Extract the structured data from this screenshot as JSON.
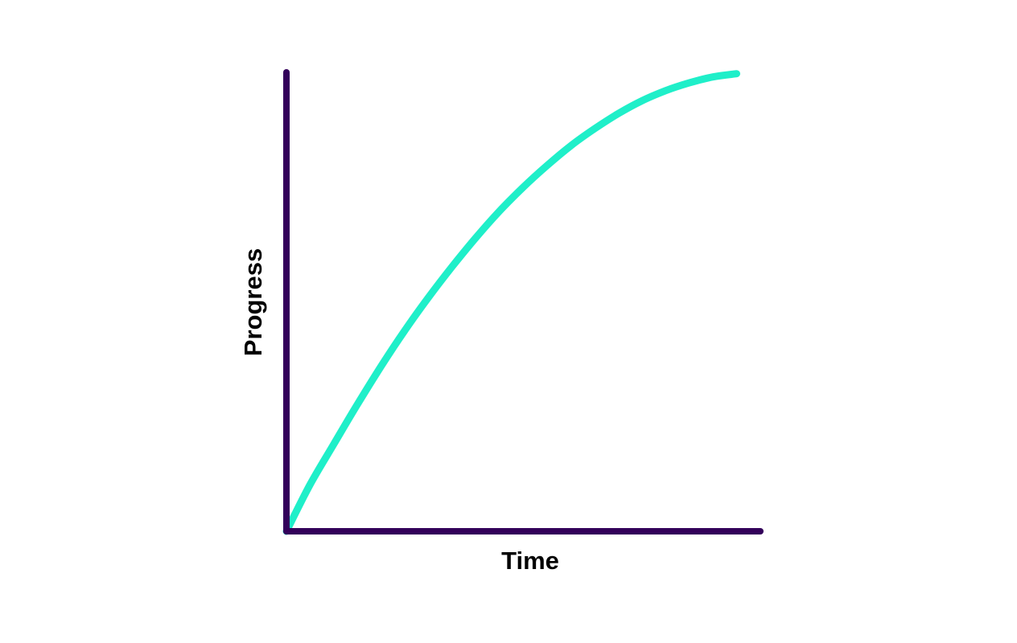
{
  "chart_data": {
    "type": "line",
    "title": "",
    "xlabel": "Time",
    "ylabel": "Progress",
    "xlim": [
      0,
      1
    ],
    "ylim": [
      0,
      1
    ],
    "grid": false,
    "legend": "none",
    "series": [
      {
        "x": [
          0,
          0.05,
          0.1,
          0.15,
          0.2,
          0.25,
          0.3,
          0.35,
          0.4,
          0.45,
          0.5,
          0.55,
          0.6,
          0.65,
          0.7,
          0.75,
          0.8,
          0.85,
          0.9,
          0.95
        ],
        "values": [
          0,
          0.102,
          0.19,
          0.277,
          0.36,
          0.438,
          0.51,
          0.577,
          0.64,
          0.698,
          0.75,
          0.797,
          0.84,
          0.877,
          0.91,
          0.938,
          0.96,
          0.977,
          0.99,
          0.997
        ]
      }
    ]
  },
  "colors": {
    "axis": "#33005a",
    "series": "#1fefc9",
    "background": "#ffffff",
    "label": "#000000"
  }
}
